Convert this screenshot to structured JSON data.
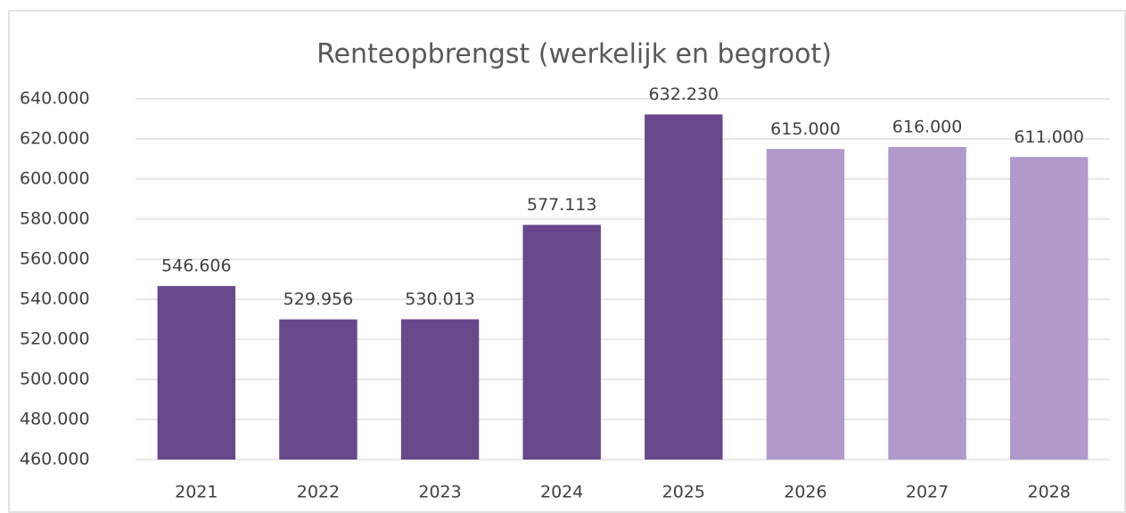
{
  "chart_data": {
    "type": "bar",
    "title": "Renteopbrengst (werkelijk en begroot)",
    "categories": [
      "2021",
      "2022",
      "2023",
      "2024",
      "2025",
      "2026",
      "2027",
      "2028"
    ],
    "values": [
      546606,
      529956,
      530013,
      577113,
      632230,
      615000,
      616000,
      611000
    ],
    "value_labels": [
      "546.606",
      "529.956",
      "530.013",
      "577.113",
      "632.230",
      "615.000",
      "616.000",
      "611.000"
    ],
    "colors": [
      "#68488b",
      "#68488b",
      "#68488b",
      "#68488b",
      "#68488b",
      "#b199cc",
      "#b199cc",
      "#b199cc"
    ],
    "ylim": [
      460000,
      640000
    ],
    "yticks": [
      {
        "value": 460000,
        "label": "460.000"
      },
      {
        "value": 480000,
        "label": "480.000"
      },
      {
        "value": 500000,
        "label": "500.000"
      },
      {
        "value": 520000,
        "label": "520.000"
      },
      {
        "value": 540000,
        "label": "540.000"
      },
      {
        "value": 560000,
        "label": "560.000"
      },
      {
        "value": 580000,
        "label": "580.000"
      },
      {
        "value": 600000,
        "label": "600.000"
      },
      {
        "value": 620000,
        "label": "620.000"
      },
      {
        "value": 640000,
        "label": "640.000"
      }
    ],
    "grid": true
  }
}
